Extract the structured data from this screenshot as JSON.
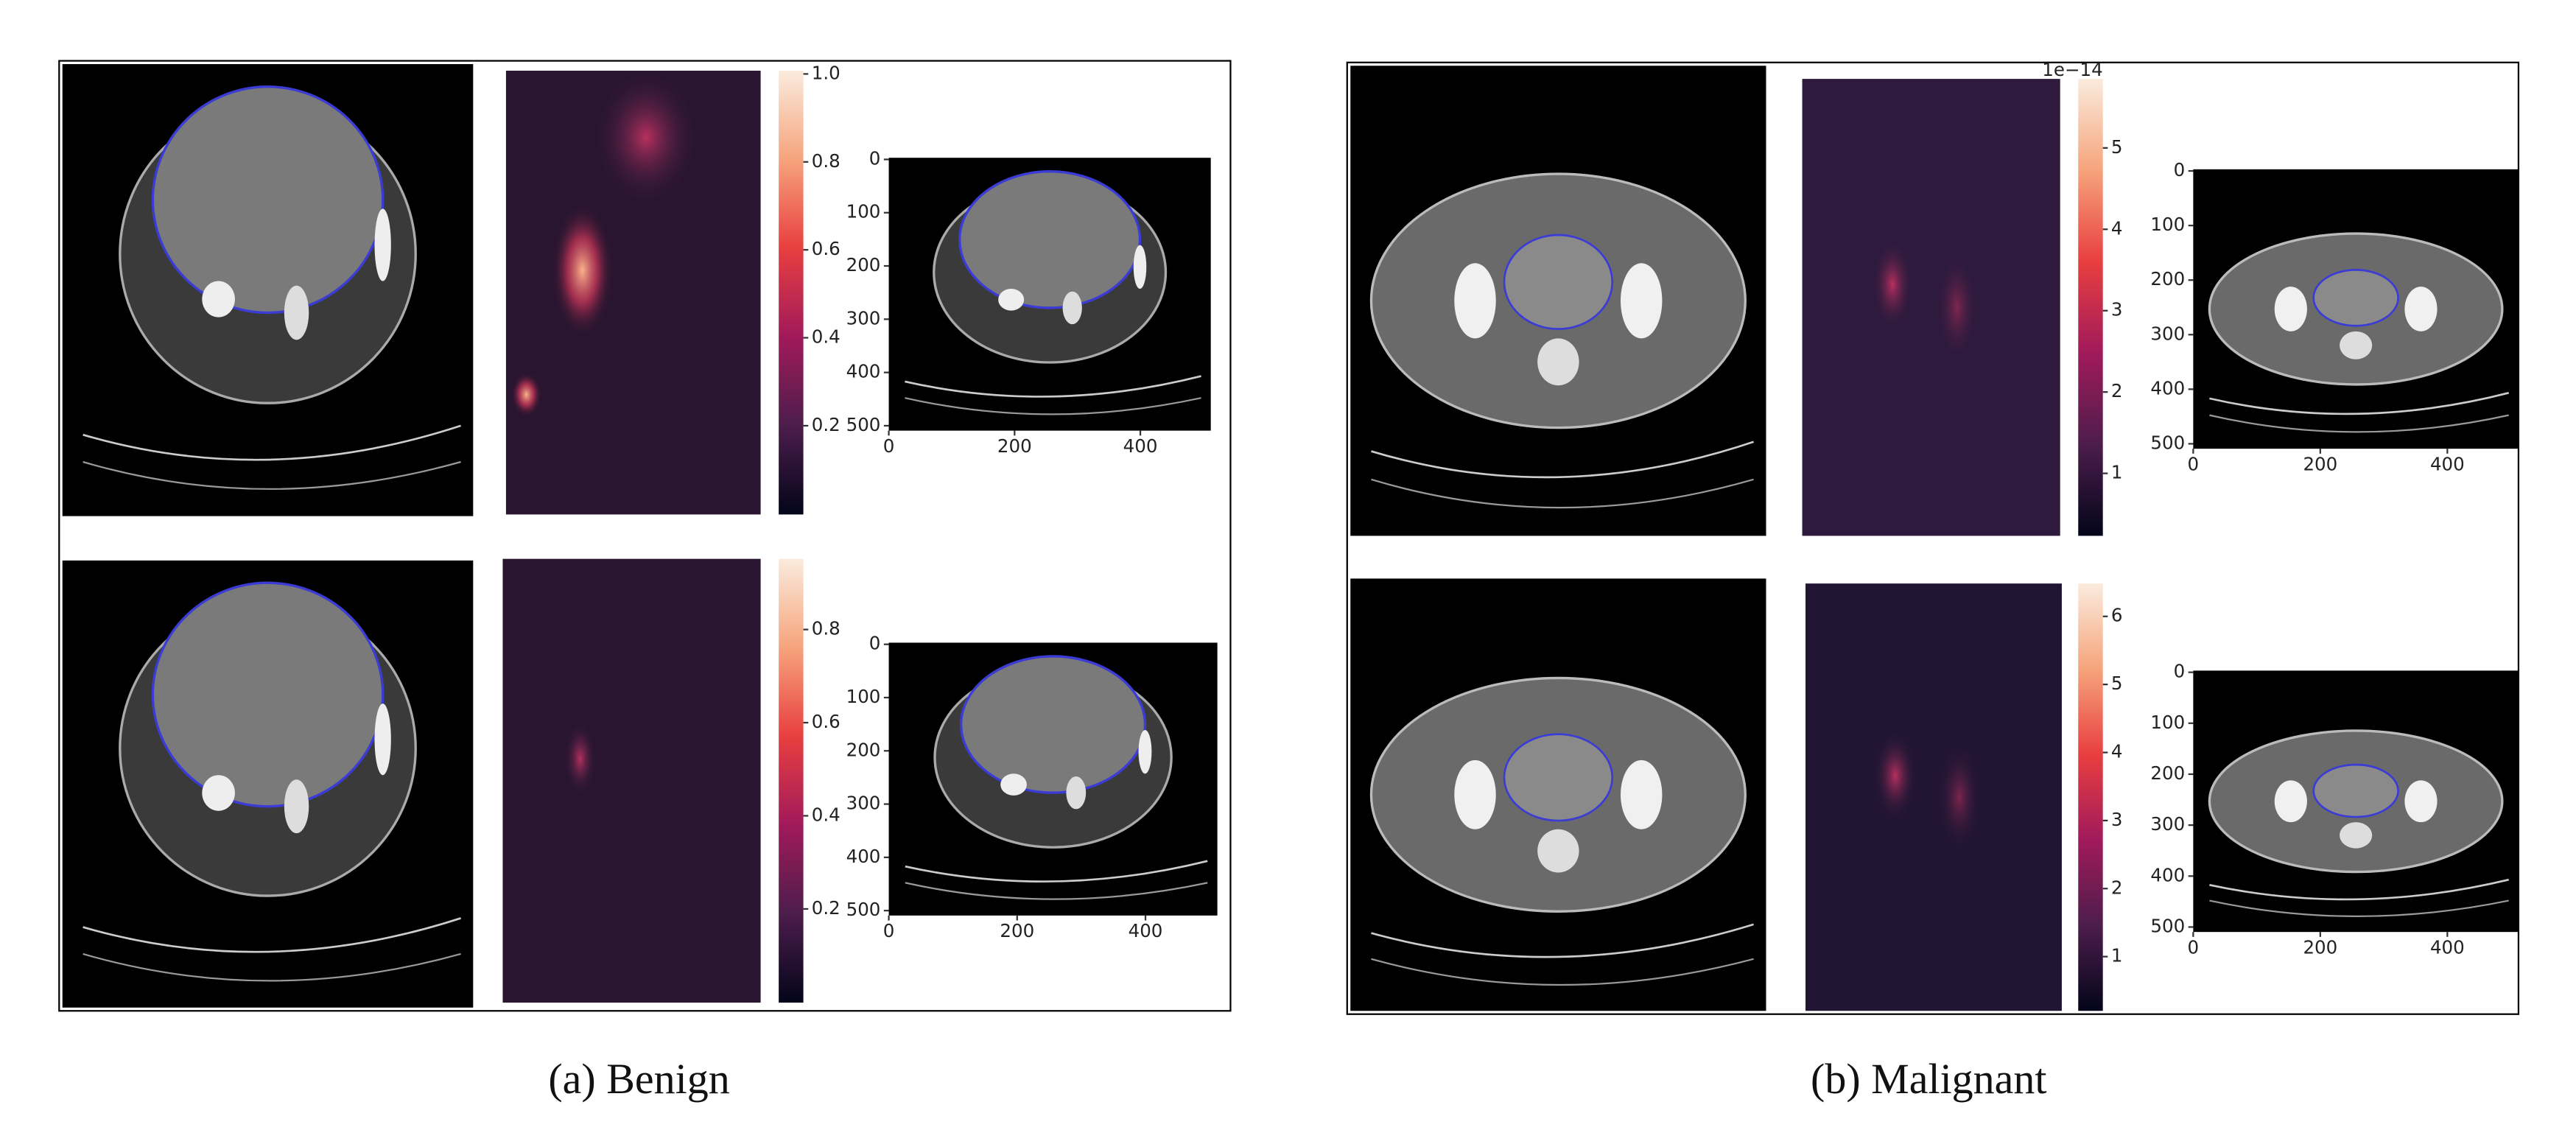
{
  "panels": [
    {
      "caption": "(a)  Benign",
      "rows": [
        {
          "colorbar_ticks": [
            "1.0",
            "0.8",
            "0.6",
            "0.4",
            "0.2"
          ],
          "yticks": [
            "0",
            "100",
            "200",
            "300",
            "400",
            "500"
          ],
          "xticks": [
            "0",
            "200",
            "400"
          ]
        },
        {
          "colorbar_ticks": [
            "0.8",
            "0.6",
            "0.4",
            "0.2"
          ],
          "yticks": [
            "0",
            "100",
            "200",
            "300",
            "400",
            "500"
          ],
          "xticks": [
            "0",
            "200",
            "400"
          ]
        }
      ]
    },
    {
      "caption": "(b)  Malignant",
      "rows": [
        {
          "colorbar_offset": "1e−14",
          "colorbar_ticks": [
            "5",
            "4",
            "3",
            "2",
            "1"
          ],
          "yticks": [
            "0",
            "100",
            "200",
            "300",
            "400",
            "500"
          ],
          "xticks": [
            "0",
            "200",
            "400"
          ]
        },
        {
          "colorbar_ticks": [
            "6",
            "5",
            "4",
            "3",
            "2",
            "1"
          ],
          "yticks": [
            "0",
            "100",
            "200",
            "300",
            "400",
            "500"
          ],
          "xticks": [
            "0",
            "200",
            "400"
          ]
        }
      ]
    }
  ]
}
